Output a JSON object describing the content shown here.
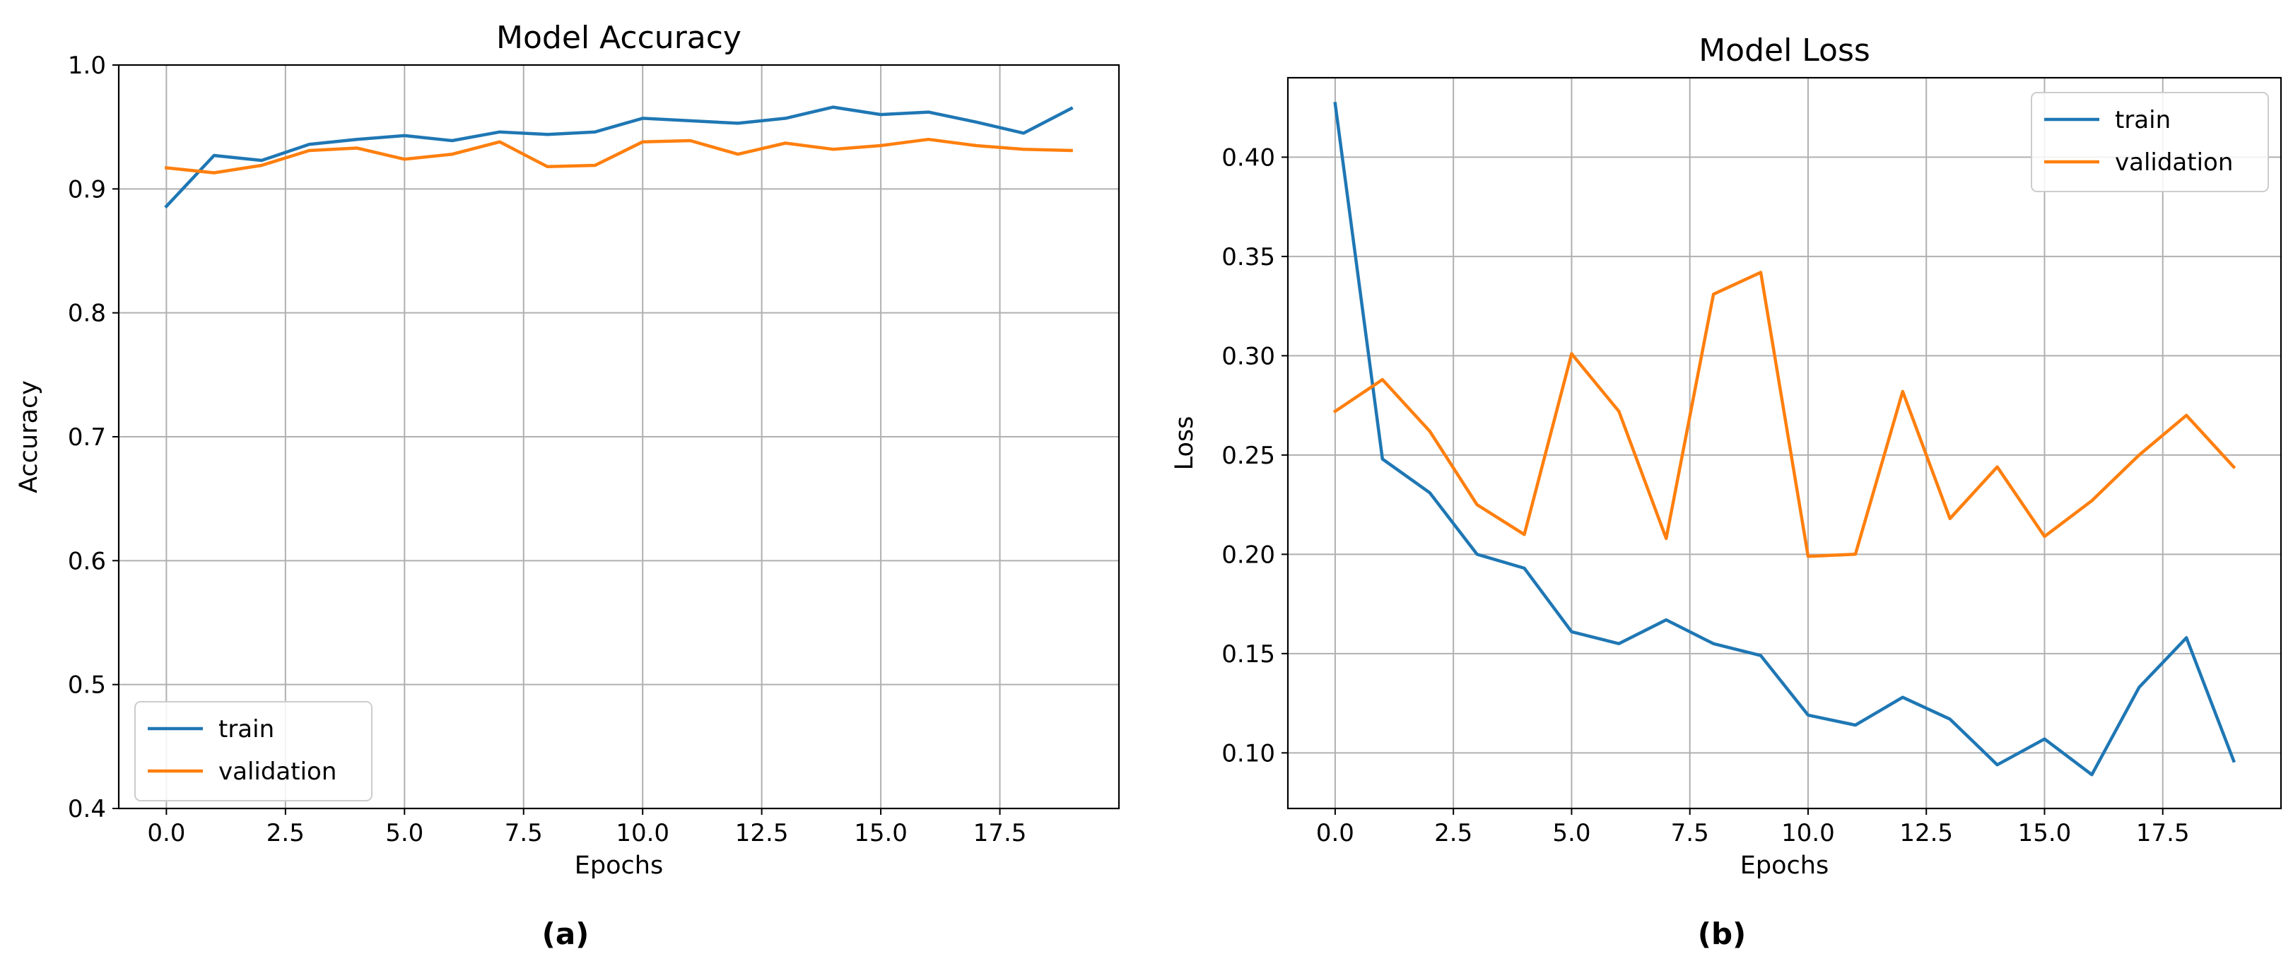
{
  "chart_data": [
    {
      "type": "line",
      "title": "Model Accuracy",
      "xlabel": "Epochs",
      "ylabel": "Accuracy",
      "xlim": [
        -1.0,
        20.0
      ],
      "ylim": [
        0.4,
        1.0
      ],
      "xticks": [
        0.0,
        2.5,
        5.0,
        7.5,
        10.0,
        12.5,
        15.0,
        17.5
      ],
      "xtick_labels": [
        "0.0",
        "2.5",
        "5.0",
        "7.5",
        "10.0",
        "12.5",
        "15.0",
        "17.5"
      ],
      "yticks": [
        0.4,
        0.5,
        0.6,
        0.7,
        0.8,
        0.9,
        1.0
      ],
      "ytick_labels": [
        "0.4",
        "0.5",
        "0.6",
        "0.7",
        "0.8",
        "0.9",
        "1.0"
      ],
      "grid": true,
      "legend": "lower-left",
      "x": [
        0,
        1,
        2,
        3,
        4,
        5,
        6,
        7,
        8,
        9,
        10,
        11,
        12,
        13,
        14,
        15,
        16,
        17,
        18,
        19
      ],
      "series": [
        {
          "name": "train",
          "color": "#1f77b4",
          "values": [
            0.886,
            0.927,
            0.923,
            0.936,
            0.94,
            0.943,
            0.939,
            0.946,
            0.944,
            0.946,
            0.957,
            0.955,
            0.953,
            0.957,
            0.966,
            0.96,
            0.962,
            0.954,
            0.945,
            0.965
          ]
        },
        {
          "name": "validation",
          "color": "#ff7f0e",
          "values": [
            0.917,
            0.913,
            0.919,
            0.931,
            0.933,
            0.924,
            0.928,
            0.938,
            0.918,
            0.919,
            0.938,
            0.939,
            0.928,
            0.937,
            0.932,
            0.935,
            0.94,
            0.935,
            0.932,
            0.931
          ]
        }
      ]
    },
    {
      "type": "line",
      "title": "Model Loss",
      "xlabel": "Epochs",
      "ylabel": "Loss",
      "xlim": [
        -1.0,
        20.0
      ],
      "ylim": [
        0.072,
        0.44
      ],
      "xticks": [
        0.0,
        2.5,
        5.0,
        7.5,
        10.0,
        12.5,
        15.0,
        17.5
      ],
      "xtick_labels": [
        "0.0",
        "2.5",
        "5.0",
        "7.5",
        "10.0",
        "12.5",
        "15.0",
        "17.5"
      ],
      "yticks": [
        0.1,
        0.15,
        0.2,
        0.25,
        0.3,
        0.35,
        0.4
      ],
      "ytick_labels": [
        "0.10",
        "0.15",
        "0.20",
        "0.25",
        "0.30",
        "0.35",
        "0.40"
      ],
      "grid": true,
      "legend": "upper-right",
      "x": [
        0,
        1,
        2,
        3,
        4,
        5,
        6,
        7,
        8,
        9,
        10,
        11,
        12,
        13,
        14,
        15,
        16,
        17,
        18,
        19
      ],
      "series": [
        {
          "name": "train",
          "color": "#1f77b4",
          "values": [
            0.427,
            0.248,
            0.231,
            0.2,
            0.193,
            0.161,
            0.155,
            0.167,
            0.155,
            0.149,
            0.119,
            0.114,
            0.128,
            0.117,
            0.094,
            0.107,
            0.089,
            0.133,
            0.158,
            0.096
          ]
        },
        {
          "name": "validation",
          "color": "#ff7f0e",
          "values": [
            0.272,
            0.288,
            0.262,
            0.225,
            0.21,
            0.301,
            0.272,
            0.208,
            0.331,
            0.342,
            0.199,
            0.2,
            0.282,
            0.218,
            0.244,
            0.209,
            0.227,
            0.25,
            0.27,
            0.244
          ]
        }
      ]
    }
  ],
  "panel_labels": [
    "(a)",
    "(b)"
  ]
}
